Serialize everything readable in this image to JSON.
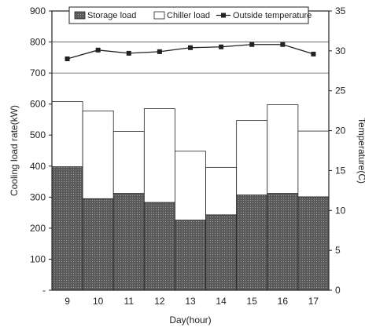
{
  "chart_data": {
    "type": "bar",
    "stacked": true,
    "categories": [
      "9",
      "10",
      "11",
      "12",
      "13",
      "14",
      "15",
      "16",
      "17"
    ],
    "xlabel": "Day(hour)",
    "ylabel": "Cooling load rate(kW)",
    "y2label": "Temperature(C)",
    "ylim": [
      0,
      900
    ],
    "y_ticks": [
      "-",
      "100",
      "200",
      "300",
      "400",
      "500",
      "600",
      "700",
      "800",
      "900"
    ],
    "y2lim": [
      0,
      35
    ],
    "y2_ticks": [
      "0",
      "5",
      "10",
      "15",
      "20",
      "25",
      "30",
      "35"
    ],
    "grid": "horizontal at 700 and 800",
    "legend_position": "top",
    "series": [
      {
        "name": "Storage load",
        "type": "bar",
        "axis": "left",
        "color": "#6a6a6a",
        "values": [
          398,
          295,
          312,
          283,
          226,
          243,
          307,
          312,
          301
        ]
      },
      {
        "name": "Chiller load",
        "type": "bar",
        "axis": "left",
        "color": "#ffffff",
        "values": [
          210,
          283,
          200,
          302,
          222,
          153,
          240,
          286,
          212
        ]
      },
      {
        "name": "Outside temperature",
        "type": "line",
        "axis": "right",
        "color": "#222222",
        "values": [
          29.0,
          30.1,
          29.7,
          29.9,
          30.4,
          30.5,
          30.8,
          30.8,
          29.6
        ]
      }
    ]
  }
}
